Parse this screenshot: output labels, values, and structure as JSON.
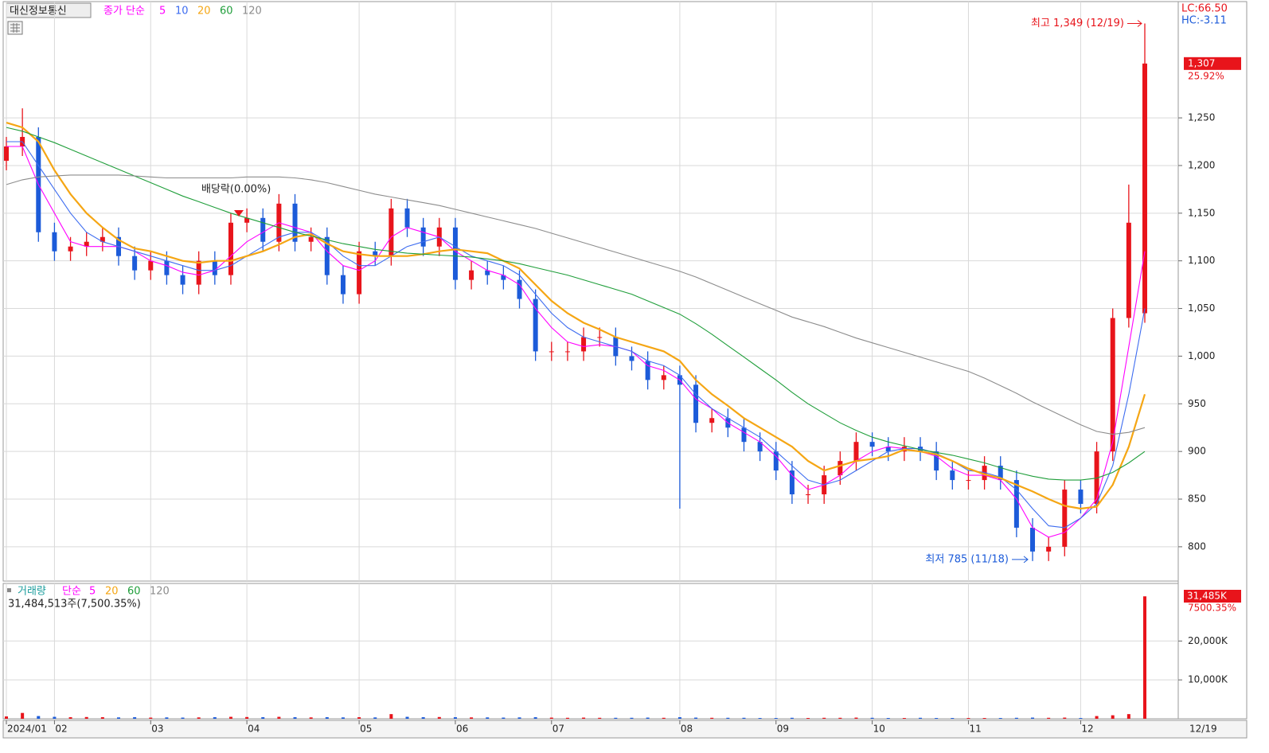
{
  "chart_data": [
    {
      "type": "candlestick",
      "title": "대신정보통신",
      "subtitle": "종가 단순",
      "categories": [
        "2024/01",
        null,
        null,
        "02",
        null,
        null,
        null,
        null,
        null,
        "03",
        null,
        null,
        null,
        null,
        null,
        "04",
        null,
        null,
        null,
        null,
        null,
        null,
        "05",
        null,
        null,
        null,
        null,
        null,
        "06",
        null,
        null,
        null,
        null,
        null,
        "07",
        null,
        null,
        null,
        null,
        null,
        null,
        null,
        "08",
        null,
        null,
        null,
        null,
        null,
        "09",
        null,
        null,
        null,
        null,
        null,
        "10",
        null,
        null,
        null,
        null,
        null,
        "11",
        null,
        null,
        null,
        null,
        null,
        null,
        "12",
        null,
        null,
        null,
        null
      ],
      "open": [
        1205,
        1220,
        1230,
        1130,
        1110,
        1115,
        1120,
        1125,
        1105,
        1090,
        1100,
        1085,
        1075,
        1100,
        1085,
        1140,
        1145,
        1120,
        1160,
        1120,
        1125,
        1085,
        1065,
        1110,
        1105,
        1155,
        1135,
        1115,
        1135,
        1080,
        1090,
        1085,
        1080,
        1060,
        1005,
        1005,
        1005,
        1020,
        1020,
        1000,
        995,
        975,
        980,
        970,
        930,
        935,
        925,
        910,
        900,
        880,
        855,
        855,
        875,
        890,
        910,
        905,
        900,
        905,
        900,
        880,
        870,
        870,
        885,
        870,
        820,
        795,
        800,
        860,
        845,
        900,
        1040,
        1045
      ],
      "high": [
        1230,
        1260,
        1240,
        1140,
        1125,
        1130,
        1135,
        1135,
        1115,
        1110,
        1110,
        1095,
        1110,
        1110,
        1150,
        1155,
        1155,
        1170,
        1170,
        1135,
        1135,
        1095,
        1120,
        1120,
        1165,
        1165,
        1145,
        1145,
        1145,
        1100,
        1100,
        1095,
        1090,
        1070,
        1015,
        1015,
        1030,
        1030,
        1030,
        1010,
        1005,
        990,
        990,
        980,
        945,
        945,
        935,
        920,
        910,
        890,
        865,
        885,
        900,
        920,
        920,
        915,
        915,
        915,
        910,
        890,
        880,
        895,
        895,
        880,
        830,
        810,
        870,
        870,
        910,
        1050,
        1180,
        1349
      ],
      "low": [
        1195,
        1210,
        1120,
        1100,
        1100,
        1105,
        1110,
        1095,
        1080,
        1080,
        1075,
        1065,
        1065,
        1075,
        1075,
        1130,
        1110,
        1110,
        1110,
        1110,
        1075,
        1055,
        1055,
        1095,
        1095,
        1125,
        1105,
        1105,
        1070,
        1070,
        1075,
        1070,
        1050,
        995,
        995,
        995,
        995,
        1010,
        990,
        985,
        965,
        965,
        840,
        920,
        920,
        915,
        900,
        890,
        870,
        845,
        845,
        845,
        865,
        880,
        895,
        890,
        890,
        890,
        870,
        860,
        860,
        860,
        860,
        810,
        785,
        785,
        790,
        835,
        835,
        890,
        1030,
        1035
      ],
      "close": [
        1220,
        1230,
        1130,
        1110,
        1115,
        1120,
        1125,
        1105,
        1090,
        1100,
        1085,
        1075,
        1100,
        1085,
        1140,
        1145,
        1120,
        1160,
        1120,
        1125,
        1085,
        1065,
        1110,
        1105,
        1155,
        1135,
        1115,
        1135,
        1080,
        1090,
        1085,
        1080,
        1060,
        1005,
        1005,
        1005,
        1020,
        1020,
        1000,
        995,
        975,
        980,
        970,
        930,
        935,
        925,
        910,
        900,
        880,
        855,
        855,
        875,
        890,
        910,
        905,
        900,
        905,
        900,
        880,
        870,
        870,
        885,
        870,
        820,
        795,
        800,
        860,
        845,
        900,
        1040,
        1140,
        1307
      ],
      "up_color": "#e8141b",
      "down_color": "#1c5bd9",
      "series": [
        {
          "name": "5",
          "color": "#ff00ff",
          "values": [
            1220,
            1220,
            1180,
            1150,
            1120,
            1115,
            1115,
            1115,
            1110,
            1100,
            1095,
            1088,
            1085,
            1090,
            1105,
            1120,
            1130,
            1140,
            1135,
            1130,
            1110,
            1095,
            1090,
            1100,
            1125,
            1135,
            1130,
            1125,
            1110,
            1100,
            1090,
            1085,
            1075,
            1050,
            1030,
            1015,
            1010,
            1012,
            1010,
            1005,
            990,
            985,
            975,
            955,
            945,
            930,
            920,
            910,
            895,
            875,
            860,
            865,
            875,
            890,
            900,
            905,
            903,
            900,
            895,
            882,
            875,
            875,
            870,
            850,
            820,
            810,
            815,
            830,
            850,
            910,
            1010,
            1110
          ]
        },
        {
          "name": "10",
          "color": "#3d6cf0",
          "values": [
            1225,
            1225,
            1200,
            1175,
            1150,
            1130,
            1120,
            1115,
            1110,
            1105,
            1100,
            1095,
            1090,
            1090,
            1095,
            1105,
            1115,
            1125,
            1130,
            1130,
            1120,
            1105,
            1095,
            1095,
            1105,
            1115,
            1120,
            1125,
            1115,
            1105,
            1100,
            1095,
            1085,
            1065,
            1045,
            1030,
            1020,
            1015,
            1010,
            1005,
            995,
            990,
            980,
            960,
            945,
            935,
            925,
            915,
            900,
            885,
            870,
            865,
            870,
            880,
            890,
            900,
            903,
            903,
            898,
            890,
            880,
            878,
            873,
            860,
            840,
            822,
            820,
            830,
            845,
            885,
            960,
            1050
          ]
        },
        {
          "name": "20",
          "color": "#f5a614",
          "values": [
            1245,
            1240,
            1225,
            1195,
            1170,
            1150,
            1135,
            1122,
            1113,
            1110,
            1105,
            1100,
            1098,
            1100,
            1100,
            1105,
            1110,
            1117,
            1125,
            1128,
            1118,
            1110,
            1107,
            1105,
            1105,
            1105,
            1107,
            1110,
            1112,
            1110,
            1108,
            1100,
            1092,
            1075,
            1058,
            1045,
            1035,
            1028,
            1020,
            1015,
            1010,
            1005,
            995,
            975,
            960,
            948,
            935,
            925,
            915,
            905,
            890,
            880,
            885,
            890,
            892,
            895,
            902,
            900,
            897,
            890,
            882,
            876,
            872,
            865,
            858,
            850,
            843,
            840,
            842,
            865,
            905,
            960
          ]
        },
        {
          "name": "60",
          "color": "#1f9e3a",
          "values": [
            1240,
            1236,
            1230,
            1224,
            1217,
            1210,
            1203,
            1196,
            1189,
            1182,
            1175,
            1168,
            1162,
            1156,
            1150,
            1145,
            1140,
            1135,
            1130,
            1126,
            1122,
            1118,
            1115,
            1112,
            1110,
            1108,
            1107,
            1106,
            1105,
            1104,
            1102,
            1100,
            1097,
            1093,
            1089,
            1085,
            1080,
            1075,
            1070,
            1065,
            1058,
            1051,
            1044,
            1034,
            1023,
            1011,
            999,
            987,
            975,
            962,
            950,
            940,
            930,
            922,
            915,
            910,
            906,
            902,
            899,
            896,
            892,
            888,
            883,
            878,
            874,
            871,
            870,
            870,
            872,
            878,
            888,
            900
          ]
        },
        {
          "name": "120",
          "color": "#8c8c8c",
          "values": [
            1180,
            1185,
            1188,
            1189,
            1190,
            1190,
            1190,
            1190,
            1189,
            1188,
            1187,
            1187,
            1187,
            1187,
            1187,
            1188,
            1188,
            1188,
            1187,
            1185,
            1182,
            1178,
            1174,
            1170,
            1167,
            1164,
            1161,
            1158,
            1154,
            1150,
            1146,
            1142,
            1138,
            1134,
            1129,
            1124,
            1119,
            1114,
            1109,
            1104,
            1099,
            1094,
            1089,
            1083,
            1076,
            1069,
            1062,
            1055,
            1048,
            1041,
            1036,
            1031,
            1025,
            1019,
            1014,
            1009,
            1004,
            999,
            994,
            989,
            984,
            977,
            969,
            961,
            952,
            944,
            936,
            928,
            921,
            918,
            920,
            925
          ]
        }
      ],
      "ylim": [
        764,
        1372
      ],
      "yticks": [
        800,
        850,
        900,
        950,
        {
          "value": 1000,
          "label": "1,000"
        },
        {
          "value": 1050,
          "label": "1,050"
        },
        {
          "value": 1100,
          "label": "1,100"
        },
        {
          "value": 1150,
          "label": "1,150"
        },
        {
          "value": 1200,
          "label": "1,200"
        },
        {
          "value": 1250,
          "label": "1,250"
        }
      ],
      "grid": true,
      "high_label": "최고 1,349 (12/19)",
      "low_label": "최저 785 (11/18)",
      "dividend_label": "배당락(0.00%)",
      "last_price": "1,307",
      "last_change": "25.92%",
      "lc": "LC:66.50",
      "hc": "HC:-3.11",
      "last_date": "12/19"
    },
    {
      "type": "bar",
      "title": "거래량",
      "subtitle": "단순",
      "ma_legend": [
        {
          "name": "5",
          "color": "#ff00ff"
        },
        {
          "name": "20",
          "color": "#f5a614"
        },
        {
          "name": "60",
          "color": "#1f9e3a"
        },
        {
          "name": "120",
          "color": "#8c8c8c"
        }
      ],
      "header": "31,484,513주(7,500.35%)",
      "values": [
        600,
        1500,
        700,
        500,
        400,
        450,
        400,
        350,
        400,
        300,
        350,
        300,
        350,
        400,
        500,
        450,
        400,
        500,
        400,
        350,
        400,
        350,
        400,
        350,
        1200,
        500,
        400,
        450,
        400,
        350,
        350,
        300,
        350,
        400,
        300,
        250,
        300,
        250,
        250,
        250,
        300,
        250,
        400,
        300,
        250,
        250,
        250,
        200,
        200,
        250,
        200,
        250,
        250,
        300,
        250,
        200,
        200,
        250,
        200,
        200,
        200,
        200,
        200,
        250,
        300,
        250,
        300,
        200,
        700,
        900,
        1200,
        31485
      ],
      "last_label": "31,485K",
      "last_change": "7500.35%",
      "ylim": [
        0,
        34800
      ],
      "yticks": [
        {
          "value": 10000,
          "label": "10,000K"
        },
        {
          "value": 20000,
          "label": "20,000K"
        }
      ],
      "grid": true
    }
  ]
}
